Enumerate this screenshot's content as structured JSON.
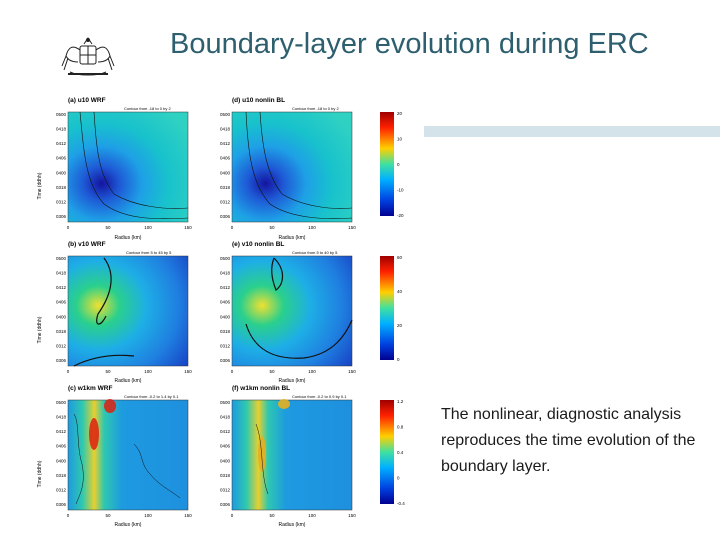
{
  "slide": {
    "title": "Boundary-layer evolution during ERC",
    "caption": "The nonlinear, diagnostic analysis reproduces the time evolution of the boundary layer."
  },
  "logo": {
    "icon": "coat-of-arms-icon"
  },
  "colors": {
    "title": "#2d5f6e",
    "accent_bar": "#d4e2ea",
    "contour": "#111111"
  },
  "figure": {
    "y_label": "Time (ddhh)",
    "x_label": "Radius (km)",
    "y_ticks": [
      "0500",
      "0418",
      "0412",
      "0406",
      "0400",
      "0318",
      "0312",
      "0306"
    ],
    "x_ticks": [
      "0",
      "50",
      "100",
      "150"
    ],
    "colorscale": "jet",
    "panels": [
      {
        "id": "a",
        "title": "(a) u10 WRF",
        "contour_note": "Contour from -18 to 0 by 2"
      },
      {
        "id": "d",
        "title": "(d) u10 nonlin BL",
        "contour_note": "Contour from -18 to 0 by 2"
      },
      {
        "id": "b",
        "title": "(b) v10 WRF",
        "contour_note": "Contour from 5 to 45 by 5"
      },
      {
        "id": "e",
        "title": "(e) v10 nonlin BL",
        "contour_note": "Contour from 5 to 40 by 5"
      },
      {
        "id": "c",
        "title": "(c) w1km WRF",
        "contour_note": "Contour from -0.2 to 1.4 by 0.1"
      },
      {
        "id": "f",
        "title": "(f) w1km nonlin BL",
        "contour_note": "Contour from -0.2 to 0.9 by 0.1"
      }
    ],
    "colorbars": [
      {
        "ticks": [
          "20",
          "10",
          "0",
          "-10",
          "-20"
        ]
      },
      {
        "ticks": [
          "60",
          "40",
          "20",
          "0"
        ]
      },
      {
        "ticks": [
          "1.2",
          "0.8",
          "0.4",
          "0",
          "-0.4"
        ]
      }
    ]
  }
}
